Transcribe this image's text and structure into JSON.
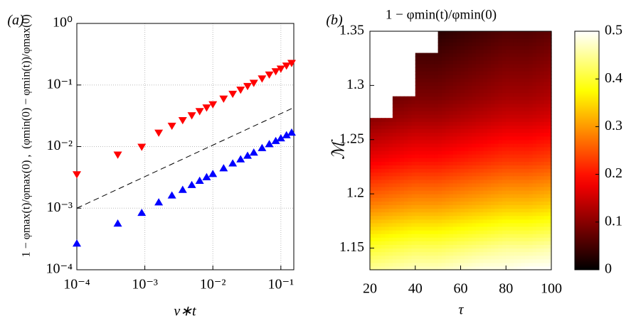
{
  "chart_data": [
    {
      "type": "scatter",
      "label": "(a)",
      "xlabel": "ν∗t",
      "ylabel": [
        "1 − φmax(t)/φmax(0) ,",
        "(φmin(0) − φmin(t))/φmax(0)"
      ],
      "xscale": "log",
      "yscale": "log",
      "xlim": [
        0.0001,
        0.155
      ],
      "ylim": [
        0.0001,
        1
      ],
      "xticks": [
        {
          "value": 0.0001,
          "label": "10⁻⁴"
        },
        {
          "value": 0.001,
          "label": "10⁻³"
        },
        {
          "value": 0.01,
          "label": "10⁻²"
        },
        {
          "value": 0.1,
          "label": "10⁻¹"
        }
      ],
      "yticks": [
        {
          "value": 0.0001,
          "label": "10⁻⁴"
        },
        {
          "value": 0.001,
          "label": "10⁻³"
        },
        {
          "value": 0.01,
          "label": "10⁻²"
        },
        {
          "value": 0.1,
          "label": "10⁻¹"
        },
        {
          "value": 1,
          "label": "10⁰"
        }
      ],
      "grid": true,
      "x": [
        0.0001,
        0.0004,
        0.0009,
        0.0016,
        0.0025,
        0.0036,
        0.0049,
        0.0064,
        0.0081,
        0.01,
        0.0144,
        0.0196,
        0.0256,
        0.0324,
        0.04,
        0.0529,
        0.0676,
        0.0841,
        0.1,
        0.121,
        0.144
      ],
      "series": [
        {
          "color": "#ff0000",
          "marker": "v",
          "values": [
            0.0035,
            0.0073,
            0.0098,
            0.0166,
            0.0215,
            0.0265,
            0.0318,
            0.0371,
            0.0425,
            0.048,
            0.0593,
            0.071,
            0.0828,
            0.095,
            0.107,
            0.126,
            0.146,
            0.165,
            0.182,
            0.204,
            0.225
          ]
        },
        {
          "color": "#0000ff",
          "marker": "^",
          "values": [
            0.00027,
            0.00057,
            0.00085,
            0.00126,
            0.00163,
            0.00201,
            0.00241,
            0.00282,
            0.00323,
            0.00364,
            0.0045,
            0.0054,
            0.0063,
            0.0072,
            0.0081,
            0.0096,
            0.0111,
            0.0125,
            0.0138,
            0.0155,
            0.0171
          ]
        }
      ],
      "reference_line": {
        "x": [
          0.0001,
          0.155
        ],
        "values": [
          0.001,
          0.043
        ],
        "color": "#000000",
        "dash": "dashed"
      }
    },
    {
      "type": "contour",
      "label": "(b)",
      "title": "1 − φmin(t)/φmin(0)",
      "xlabel": "τ",
      "ylabel": "ℳ",
      "xlim": [
        20,
        100
      ],
      "ylim": [
        1.13,
        1.35
      ],
      "xticks": [
        20,
        40,
        60,
        80,
        100
      ],
      "yticks": [
        1.15,
        1.2,
        1.25,
        1.3,
        1.35
      ],
      "x": [
        20,
        30,
        40,
        50,
        60,
        70,
        80,
        90,
        100
      ],
      "y": [
        1.13,
        1.15,
        1.17,
        1.19,
        1.21,
        1.23,
        1.25,
        1.27,
        1.29,
        1.31,
        1.33,
        1.35
      ],
      "z": [
        [
          0.45,
          0.46,
          0.47,
          0.47,
          0.48,
          0.49,
          0.49,
          0.5,
          0.5
        ],
        [
          0.4,
          0.41,
          0.42,
          0.42,
          0.43,
          0.44,
          0.45,
          0.45,
          0.46
        ],
        [
          0.34,
          0.35,
          0.36,
          0.36,
          0.37,
          0.38,
          0.39,
          0.39,
          0.4
        ],
        [
          0.28,
          0.29,
          0.3,
          0.3,
          0.31,
          0.32,
          0.33,
          0.33,
          0.34
        ],
        [
          0.23,
          0.24,
          0.25,
          0.25,
          0.26,
          0.27,
          0.28,
          0.28,
          0.29
        ],
        [
          0.18,
          0.19,
          0.2,
          0.2,
          0.21,
          0.22,
          0.23,
          0.23,
          0.24
        ],
        [
          0.14,
          0.15,
          0.16,
          0.16,
          0.17,
          0.18,
          0.19,
          0.19,
          0.2
        ],
        [
          0.1,
          0.11,
          0.12,
          0.12,
          0.13,
          0.14,
          0.15,
          0.15,
          0.16
        ],
        [
          null,
          0.08,
          0.09,
          0.09,
          0.1,
          0.11,
          0.12,
          0.12,
          0.13
        ],
        [
          null,
          null,
          0.07,
          0.07,
          0.08,
          0.09,
          0.1,
          0.1,
          0.11
        ],
        [
          null,
          null,
          0.05,
          0.05,
          0.06,
          0.07,
          0.08,
          0.08,
          0.09
        ],
        [
          null,
          null,
          null,
          0.03,
          0.04,
          0.05,
          0.06,
          0.06,
          0.07
        ]
      ],
      "colormap": "hot",
      "colorbar": {
        "lim": [
          0,
          0.5
        ],
        "ticks": [
          0,
          0.1,
          0.2,
          0.3,
          0.4,
          0.5
        ]
      }
    }
  ]
}
